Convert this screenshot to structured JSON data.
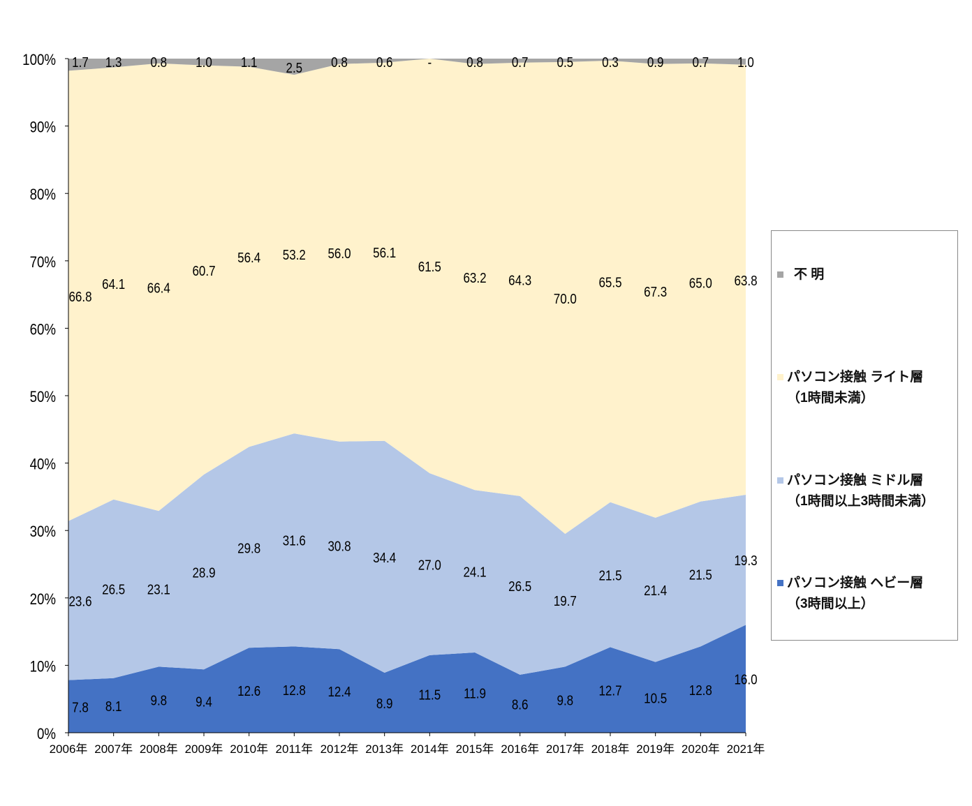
{
  "chart_data": {
    "type": "area",
    "stacked": true,
    "percent": true,
    "categories": [
      "2006年",
      "2007年",
      "2008年",
      "2009年",
      "2010年",
      "2011年",
      "2012年",
      "2013年",
      "2014年",
      "2015年",
      "2016年",
      "2017年",
      "2018年",
      "2019年",
      "2020年",
      "2021年"
    ],
    "ylim": [
      0,
      100
    ],
    "yticks": [
      "0%",
      "10%",
      "20%",
      "30%",
      "40%",
      "50%",
      "60%",
      "70%",
      "80%",
      "90%",
      "100%"
    ],
    "legend_position": "right",
    "series": [
      {
        "name": "パソコン接触 ヘビー層",
        "name2": "（3時間以上）",
        "color": "#4472c4",
        "values": [
          7.8,
          8.1,
          9.8,
          9.4,
          12.6,
          12.8,
          12.4,
          8.9,
          11.5,
          11.9,
          8.6,
          9.8,
          12.7,
          10.5,
          12.8,
          16.0
        ],
        "labels": [
          "7.8",
          "8.1",
          "9.8",
          "9.4",
          "12.6",
          "12.8",
          "12.4",
          "8.9",
          "11.5",
          "11.9",
          "8.6",
          "9.8",
          "12.7",
          "10.5",
          "12.8",
          "16.0"
        ]
      },
      {
        "name": "パソコン接触 ミドル層",
        "name2": "（1時間以上3時間未満）",
        "color": "#b4c7e7",
        "values": [
          23.6,
          26.5,
          23.1,
          28.9,
          29.8,
          31.6,
          30.8,
          34.4,
          27.0,
          24.1,
          26.5,
          19.7,
          21.5,
          21.4,
          21.5,
          19.3
        ],
        "labels": [
          "23.6",
          "26.5",
          "23.1",
          "28.9",
          "29.8",
          "31.6",
          "30.8",
          "34.4",
          "27.0",
          "24.1",
          "26.5",
          "19.7",
          "21.5",
          "21.4",
          "21.5",
          "19.3"
        ]
      },
      {
        "name": "パソコン接触 ライト層",
        "name2": "（1時間未満）",
        "color": "#fff2cc",
        "values": [
          66.8,
          64.1,
          66.4,
          60.7,
          56.4,
          53.2,
          56.0,
          56.1,
          61.5,
          63.2,
          64.3,
          70.0,
          65.5,
          67.3,
          65.0,
          63.8
        ],
        "labels": [
          "66.8",
          "64.1",
          "66.4",
          "60.7",
          "56.4",
          "53.2",
          "56.0",
          "56.1",
          "61.5",
          "63.2",
          "64.3",
          "70.0",
          "65.5",
          "67.3",
          "65.0",
          "63.8"
        ]
      },
      {
        "name": "不 明",
        "name2": "",
        "color": "#a5a5a5",
        "values": [
          1.7,
          1.3,
          0.8,
          1.0,
          1.1,
          2.5,
          0.8,
          0.6,
          0,
          0.8,
          0.7,
          0.5,
          0.3,
          0.9,
          0.7,
          1.0
        ],
        "labels": [
          "1.7",
          "1.3",
          "0.8",
          "1.0",
          "1.1",
          "2.5",
          "0.8",
          "0.6",
          "-",
          "0.8",
          "0.7",
          "0.5",
          "0.3",
          "0.9",
          "0.7",
          "1.0"
        ]
      }
    ]
  }
}
